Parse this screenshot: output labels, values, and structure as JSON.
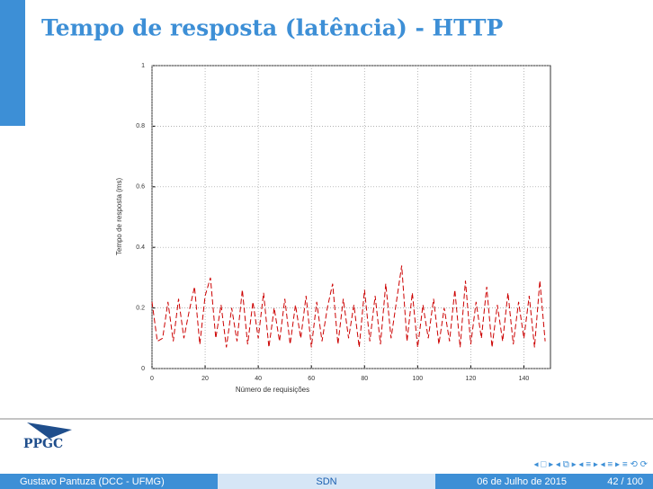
{
  "slide": {
    "title": "Tempo de resposta (latência) - HTTP",
    "logo": "PPGC",
    "author": "Gustavo Pantuza (DCC - UFMG)",
    "topic": "SDN",
    "date": "06 de Julho de 2015",
    "page": "42 / 100"
  },
  "chart_data": {
    "type": "line",
    "xlabel": "Número de requisições",
    "ylabel": "Tempo de resposta (ms)",
    "x": [
      0,
      2,
      4,
      6,
      8,
      10,
      12,
      14,
      16,
      18,
      20,
      22,
      24,
      26,
      28,
      30,
      32,
      34,
      36,
      38,
      40,
      42,
      44,
      46,
      48,
      50,
      52,
      54,
      56,
      58,
      60,
      62,
      64,
      66,
      68,
      70,
      72,
      74,
      76,
      78,
      80,
      82,
      84,
      86,
      88,
      90,
      92,
      94,
      96,
      98,
      100,
      102,
      104,
      106,
      108,
      110,
      112,
      114,
      116,
      118,
      120,
      122,
      124,
      126,
      128,
      130,
      132,
      134,
      136,
      138,
      140,
      142,
      144,
      146,
      148
    ],
    "values": [
      0.22,
      0.09,
      0.1,
      0.22,
      0.09,
      0.23,
      0.1,
      0.19,
      0.27,
      0.08,
      0.24,
      0.3,
      0.1,
      0.21,
      0.07,
      0.2,
      0.09,
      0.26,
      0.08,
      0.22,
      0.1,
      0.25,
      0.07,
      0.2,
      0.09,
      0.23,
      0.08,
      0.21,
      0.1,
      0.24,
      0.07,
      0.22,
      0.09,
      0.2,
      0.28,
      0.08,
      0.23,
      0.1,
      0.21,
      0.07,
      0.26,
      0.09,
      0.24,
      0.08,
      0.28,
      0.1,
      0.22,
      0.34,
      0.09,
      0.25,
      0.07,
      0.21,
      0.1,
      0.23,
      0.08,
      0.2,
      0.09,
      0.26,
      0.07,
      0.29,
      0.08,
      0.22,
      0.1,
      0.27,
      0.07,
      0.21,
      0.09,
      0.25,
      0.08,
      0.22,
      0.1,
      0.24,
      0.07,
      0.29,
      0.09
    ],
    "color": "#cc0000",
    "xlim": [
      0,
      150
    ],
    "ylim": [
      0,
      1
    ],
    "xticks": [
      0,
      20,
      40,
      60,
      80,
      100,
      120,
      140
    ],
    "yticks": [
      0,
      0.2,
      0.4,
      0.6,
      0.8,
      1
    ],
    "grid": true
  }
}
